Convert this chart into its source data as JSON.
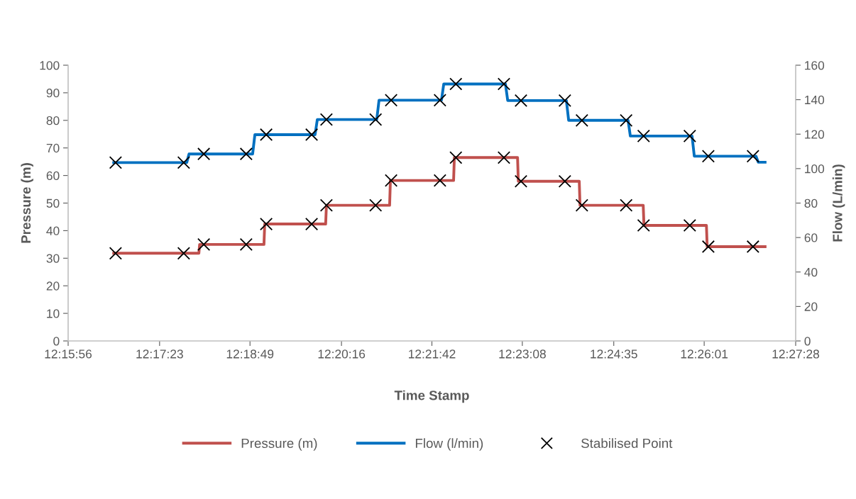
{
  "chart_data": {
    "type": "line",
    "xlabel": "Time Stamp",
    "ylabel": "Pressure (m)",
    "y2label": "Flow (L/min)",
    "xlim": [
      12.26556,
      12.45778
    ],
    "xticks": [
      {
        "value": 12.26556,
        "label": "12:15:56"
      },
      {
        "value": 12.28972,
        "label": "12:17:23"
      },
      {
        "value": 12.31361,
        "label": "12:18:49"
      },
      {
        "value": 12.33778,
        "label": "12:20:16"
      },
      {
        "value": 12.36167,
        "label": "12:21:42"
      },
      {
        "value": 12.38556,
        "label": "12:23:08"
      },
      {
        "value": 12.40972,
        "label": "12:24:35"
      },
      {
        "value": 12.43361,
        "label": "12:26:01"
      },
      {
        "value": 12.45778,
        "label": "12:27:28"
      }
    ],
    "ylim": [
      0,
      100
    ],
    "yticks": [
      0,
      10,
      20,
      30,
      40,
      50,
      60,
      70,
      80,
      90,
      100
    ],
    "y2lim": [
      0,
      160
    ],
    "y2ticks": [
      0,
      20,
      40,
      60,
      80,
      100,
      120,
      140,
      160
    ],
    "grid": false,
    "legend": "bottom",
    "series": [
      {
        "name": "Pressure (m)",
        "color": "#c0504d",
        "axis": "y",
        "x": [
          12.2776,
          12.3001,
          12.3003,
          12.3173,
          12.3175,
          12.3336,
          12.3338,
          12.3505,
          12.3507,
          12.3674,
          12.3676,
          12.3843,
          12.3845,
          12.4006,
          12.4008,
          12.4175,
          12.4177,
          12.4342,
          12.4344,
          12.4497
        ],
        "values": [
          31.8,
          31.8,
          35.0,
          35.0,
          42.4,
          42.4,
          49.2,
          49.2,
          58.2,
          58.2,
          66.5,
          66.5,
          57.9,
          57.9,
          49.2,
          49.2,
          41.9,
          41.9,
          34.2,
          34.2
        ]
      },
      {
        "name": "Flow (l/min)",
        "color": "#0070c0",
        "axis": "y2",
        "x": [
          12.2776,
          12.2969,
          12.2975,
          12.3143,
          12.3149,
          12.3308,
          12.3314,
          12.3471,
          12.3477,
          12.3642,
          12.3648,
          12.3811,
          12.3817,
          12.3972,
          12.3978,
          12.4135,
          12.4141,
          12.4304,
          12.431,
          12.4473,
          12.4479,
          12.4497
        ],
        "values": [
          103.5,
          103.5,
          108.5,
          108.5,
          119.7,
          119.7,
          128.5,
          128.5,
          139.7,
          139.7,
          149.1,
          149.1,
          139.5,
          139.5,
          128.0,
          128.0,
          118.9,
          118.9,
          107.2,
          107.2,
          103.7,
          103.7
        ]
      },
      {
        "name": "Stabilised Point",
        "type": "scatter",
        "marker": "cross",
        "color": "#000000",
        "axis": "y",
        "x": [
          12.2781,
          12.2961,
          12.3014,
          12.3126,
          12.3179,
          12.3299,
          12.3338,
          12.3468,
          12.3509,
          12.3638,
          12.368,
          12.3807,
          12.3852,
          12.3968,
          12.4013,
          12.413,
          12.4176,
          12.4298,
          12.4347,
          12.4465
        ],
        "values": [
          31.8,
          31.8,
          35.0,
          35.0,
          42.4,
          42.4,
          49.2,
          49.2,
          58.2,
          58.2,
          66.5,
          66.5,
          57.9,
          57.9,
          49.2,
          49.2,
          41.9,
          41.9,
          34.2,
          34.2
        ]
      },
      {
        "type": "scatter",
        "marker": "cross",
        "color": "#000000",
        "axis": "y2",
        "x": [
          12.2781,
          12.2961,
          12.3014,
          12.3126,
          12.3179,
          12.3299,
          12.3338,
          12.3468,
          12.3509,
          12.3638,
          12.368,
          12.3807,
          12.3852,
          12.3968,
          12.4013,
          12.413,
          12.4176,
          12.4298,
          12.4347,
          12.4465
        ],
        "values": [
          103.5,
          103.5,
          108.5,
          108.5,
          119.7,
          119.7,
          128.5,
          128.5,
          139.7,
          139.7,
          149.1,
          149.1,
          139.5,
          139.5,
          128.0,
          128.0,
          118.9,
          118.9,
          107.2,
          107.2
        ]
      }
    ]
  }
}
